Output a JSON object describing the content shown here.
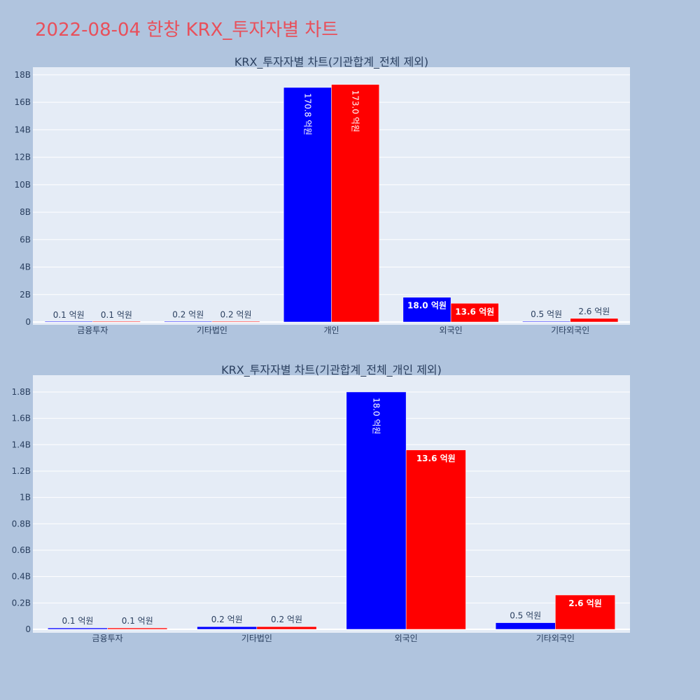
{
  "page": {
    "title": "2022-08-04 한창 KRX_투자자별 차트"
  },
  "colors": {
    "background": "#b0c4de",
    "plot_bg": "#e5ecf6",
    "buy": "#0000ff",
    "sell": "#ff0000",
    "title": "#e8505b",
    "text": "#2a3f5f"
  },
  "chart_data": [
    {
      "type": "bar",
      "title": "KRX_투자자별 차트(기관합계_전체 제외)",
      "categories": [
        "금융투자",
        "기타법인",
        "개인",
        "외국인",
        "기타외국인"
      ],
      "series": [
        {
          "color": "#0000ff",
          "values": [
            10000000,
            20000000,
            17080000000,
            1800000000,
            50000000
          ],
          "labels": [
            "0.1 억원",
            "0.2 억원",
            "170.8 억원",
            "18.0 억원",
            "0.5 억원"
          ]
        },
        {
          "color": "#ff0000",
          "values": [
            10000000,
            20000000,
            17300000000,
            1360000000,
            260000000
          ],
          "labels": [
            "0.1 억원",
            "0.2 억원",
            "173.0 억원",
            "13.6 억원",
            "2.6 억원"
          ]
        }
      ],
      "ylim": [
        0,
        18200000000
      ],
      "yticks": [
        0,
        2000000000,
        4000000000,
        6000000000,
        8000000000,
        10000000000,
        12000000000,
        14000000000,
        16000000000,
        18000000000
      ],
      "ytick_labels": [
        "0",
        "2B",
        "4B",
        "6B",
        "8B",
        "10B",
        "12B",
        "14B",
        "16B",
        "18B"
      ],
      "grid": true
    },
    {
      "type": "bar",
      "title": "KRX_투자자별 차트(기관합계_전체_개인 제외)",
      "categories": [
        "금융투자",
        "기타법인",
        "외국인",
        "기타외국인"
      ],
      "series": [
        {
          "color": "#0000ff",
          "values": [
            10000000,
            20000000,
            1800000000,
            50000000
          ],
          "labels": [
            "0.1 억원",
            "0.2 억원",
            "18.0 억원",
            "0.5 억원"
          ]
        },
        {
          "color": "#ff0000",
          "values": [
            10000000,
            20000000,
            1360000000,
            260000000
          ],
          "labels": [
            "0.1 억원",
            "0.2 억원",
            "13.6 억원",
            "2.6 억원"
          ]
        }
      ],
      "ylim": [
        0,
        1890000000
      ],
      "yticks": [
        0,
        200000000,
        400000000,
        600000000,
        800000000,
        1000000000,
        1200000000,
        1400000000,
        1600000000,
        1800000000
      ],
      "ytick_labels": [
        "0",
        "0.2B",
        "0.4B",
        "0.6B",
        "0.8B",
        "1B",
        "1.2B",
        "1.4B",
        "1.6B",
        "1.8B"
      ],
      "grid": true
    }
  ]
}
